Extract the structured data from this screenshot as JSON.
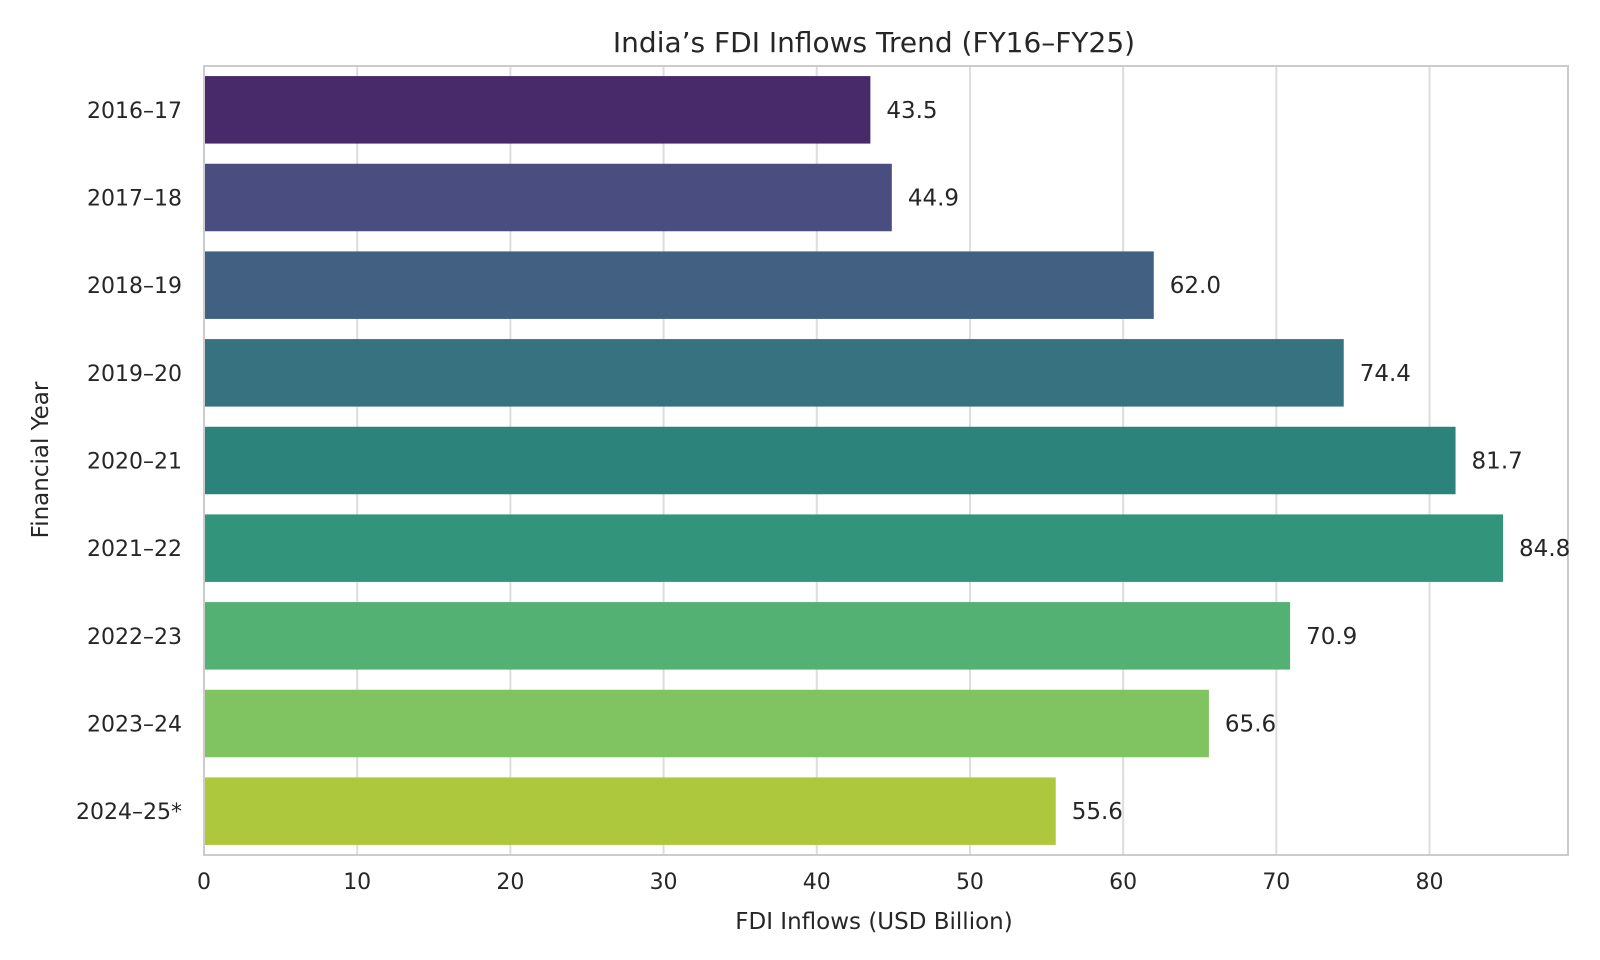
{
  "chart_data": {
    "type": "bar",
    "orientation": "horizontal",
    "title": "India’s FDI Inflows Trend (FY16–FY25)",
    "xlabel": "FDI Inflows (USD Billion)",
    "ylabel": "Financial Year",
    "categories": [
      "2016–17",
      "2017–18",
      "2018–19",
      "2019–20",
      "2020–21",
      "2021–22",
      "2022–23",
      "2023–24",
      "2024–25*"
    ],
    "values": [
      43.5,
      44.9,
      62.0,
      74.4,
      81.7,
      84.8,
      70.9,
      65.6,
      55.6
    ],
    "value_labels": [
      "43.5",
      "44.9",
      "62.0",
      "74.4",
      "81.7",
      "84.8",
      "70.9",
      "65.6",
      "55.6"
    ],
    "colors": [
      "#482a6b",
      "#4a4d7f",
      "#416082",
      "#36727f",
      "#2c837b",
      "#32957b",
      "#52b173",
      "#80c462",
      "#adc83c"
    ],
    "xlim": [
      0,
      89.04
    ],
    "xticks": [
      0,
      10,
      20,
      30,
      40,
      50,
      60,
      70,
      80
    ],
    "grid": true,
    "grid_axis": "x",
    "legend": false
  }
}
